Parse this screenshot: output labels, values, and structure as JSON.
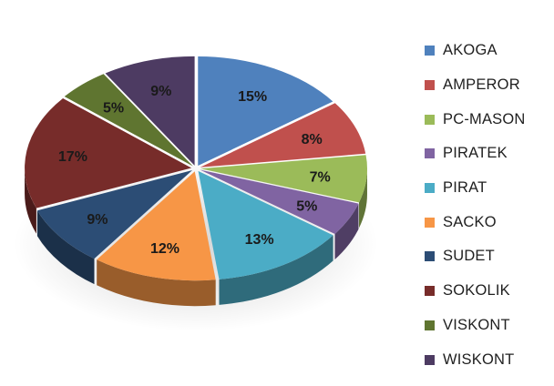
{
  "chart_data": {
    "type": "pie",
    "categories": [
      "AKOGA",
      "AMPEROR",
      "PC-MASON",
      "PIRATEK",
      "PIRAT",
      "SACKO",
      "SUDET",
      "SOKOLIK",
      "VISKONT",
      "WISKONT"
    ],
    "values": [
      15,
      8,
      7,
      5,
      13,
      12,
      9,
      17,
      5,
      9
    ],
    "labels": [
      "15%",
      "8%",
      "7%",
      "5%",
      "13%",
      "12%",
      "9%",
      "17%",
      "5%",
      "9%"
    ],
    "colors": [
      "#4f81bd",
      "#c0504d",
      "#9bbb59",
      "#8064a2",
      "#4bacc6",
      "#f79646",
      "#2c4d75",
      "#772c2a",
      "#5f7530",
      "#4d3b62"
    ],
    "legend_position": "right",
    "style": "3d-exploded"
  }
}
